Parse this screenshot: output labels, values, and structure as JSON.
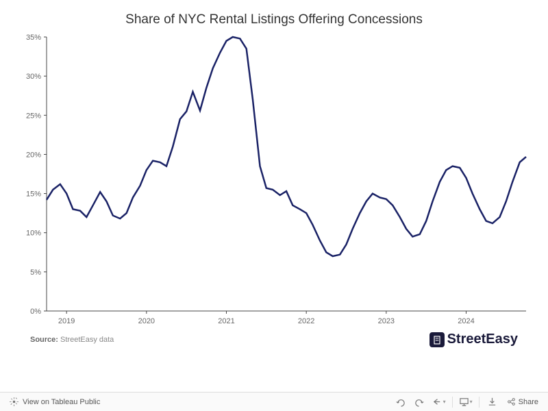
{
  "chart": {
    "type": "line",
    "title": "Share of NYC Rental Listings Offering Concessions",
    "title_fontsize": 19,
    "line_color": "#1a2266",
    "line_width": 2.5,
    "background_color": "#ffffff",
    "axis_color": "#444444",
    "tick_label_color": "#666666",
    "tick_fontsize": 11,
    "ylim": [
      0,
      35
    ],
    "ytick_step": 5,
    "yticks": [
      0,
      5,
      10,
      15,
      20,
      25,
      30,
      35
    ],
    "ytick_format": "percent",
    "x_years": [
      2019,
      2020,
      2021,
      2022,
      2023,
      2024
    ],
    "x_start": 2018.75,
    "x_end": 2024.75,
    "series": [
      {
        "x": 2018.75,
        "y": 14.2
      },
      {
        "x": 2018.83,
        "y": 15.5
      },
      {
        "x": 2018.92,
        "y": 16.2
      },
      {
        "x": 2019.0,
        "y": 15.0
      },
      {
        "x": 2019.08,
        "y": 13.0
      },
      {
        "x": 2019.17,
        "y": 12.8
      },
      {
        "x": 2019.25,
        "y": 12.0
      },
      {
        "x": 2019.33,
        "y": 13.5
      },
      {
        "x": 2019.42,
        "y": 15.2
      },
      {
        "x": 2019.5,
        "y": 14.0
      },
      {
        "x": 2019.58,
        "y": 12.2
      },
      {
        "x": 2019.67,
        "y": 11.8
      },
      {
        "x": 2019.75,
        "y": 12.5
      },
      {
        "x": 2019.83,
        "y": 14.5
      },
      {
        "x": 2019.92,
        "y": 16.0
      },
      {
        "x": 2020.0,
        "y": 18.0
      },
      {
        "x": 2020.08,
        "y": 19.2
      },
      {
        "x": 2020.17,
        "y": 19.0
      },
      {
        "x": 2020.25,
        "y": 18.5
      },
      {
        "x": 2020.33,
        "y": 21.0
      },
      {
        "x": 2020.42,
        "y": 24.5
      },
      {
        "x": 2020.5,
        "y": 25.5
      },
      {
        "x": 2020.58,
        "y": 28.0
      },
      {
        "x": 2020.67,
        "y": 25.6
      },
      {
        "x": 2020.75,
        "y": 28.5
      },
      {
        "x": 2020.83,
        "y": 31.0
      },
      {
        "x": 2020.92,
        "y": 33.0
      },
      {
        "x": 2021.0,
        "y": 34.5
      },
      {
        "x": 2021.08,
        "y": 35.0
      },
      {
        "x": 2021.17,
        "y": 34.8
      },
      {
        "x": 2021.25,
        "y": 33.5
      },
      {
        "x": 2021.33,
        "y": 27.0
      },
      {
        "x": 2021.42,
        "y": 18.5
      },
      {
        "x": 2021.5,
        "y": 15.7
      },
      {
        "x": 2021.58,
        "y": 15.5
      },
      {
        "x": 2021.67,
        "y": 14.8
      },
      {
        "x": 2021.75,
        "y": 15.3
      },
      {
        "x": 2021.83,
        "y": 13.5
      },
      {
        "x": 2021.92,
        "y": 13.0
      },
      {
        "x": 2022.0,
        "y": 12.5
      },
      {
        "x": 2022.08,
        "y": 11.0
      },
      {
        "x": 2022.17,
        "y": 9.0
      },
      {
        "x": 2022.25,
        "y": 7.5
      },
      {
        "x": 2022.33,
        "y": 7.0
      },
      {
        "x": 2022.42,
        "y": 7.2
      },
      {
        "x": 2022.5,
        "y": 8.5
      },
      {
        "x": 2022.58,
        "y": 10.5
      },
      {
        "x": 2022.67,
        "y": 12.5
      },
      {
        "x": 2022.75,
        "y": 14.0
      },
      {
        "x": 2022.83,
        "y": 15.0
      },
      {
        "x": 2022.92,
        "y": 14.5
      },
      {
        "x": 2023.0,
        "y": 14.3
      },
      {
        "x": 2023.08,
        "y": 13.5
      },
      {
        "x": 2023.17,
        "y": 12.0
      },
      {
        "x": 2023.25,
        "y": 10.5
      },
      {
        "x": 2023.33,
        "y": 9.5
      },
      {
        "x": 2023.42,
        "y": 9.8
      },
      {
        "x": 2023.5,
        "y": 11.5
      },
      {
        "x": 2023.58,
        "y": 14.0
      },
      {
        "x": 2023.67,
        "y": 16.5
      },
      {
        "x": 2023.75,
        "y": 18.0
      },
      {
        "x": 2023.83,
        "y": 18.5
      },
      {
        "x": 2023.92,
        "y": 18.3
      },
      {
        "x": 2024.0,
        "y": 17.0
      },
      {
        "x": 2024.08,
        "y": 15.0
      },
      {
        "x": 2024.17,
        "y": 13.0
      },
      {
        "x": 2024.25,
        "y": 11.5
      },
      {
        "x": 2024.33,
        "y": 11.2
      },
      {
        "x": 2024.42,
        "y": 12.0
      },
      {
        "x": 2024.5,
        "y": 14.0
      },
      {
        "x": 2024.58,
        "y": 16.5
      },
      {
        "x": 2024.67,
        "y": 19.0
      },
      {
        "x": 2024.75,
        "y": 19.7
      }
    ]
  },
  "source": {
    "label": "Source:",
    "text": "StreetEasy data"
  },
  "logo": {
    "text": "StreetEasy"
  },
  "toolbar": {
    "view_label": "View on Tableau Public",
    "share_label": "Share"
  }
}
